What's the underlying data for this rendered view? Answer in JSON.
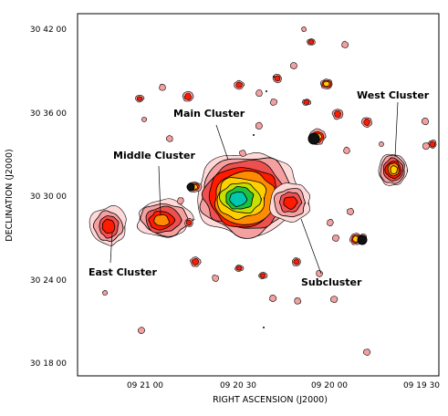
{
  "chart_data": {
    "type": "contour",
    "xlabel": "RIGHT ASCENSION  (J2000)",
    "ylabel": "DECLINATION  (J2000)",
    "x_ticks": [
      "09 21 00",
      "09 20 30",
      "09 20 00",
      "09 19 30"
    ],
    "y_ticks": [
      "30 42 00",
      "30 36 00",
      "30 30 00",
      "30 24 00",
      "30 18 00"
    ],
    "x_axis": "right ascension, increasing to the left",
    "annotations": [
      {
        "name": "main-cluster",
        "text": "Main Cluster"
      },
      {
        "name": "middle-cluster",
        "text": "Middle Cluster"
      },
      {
        "name": "west-cluster",
        "text": "West Cluster"
      },
      {
        "name": "east-cluster",
        "text": "East Cluster"
      },
      {
        "name": "subcluster",
        "text": "Subcluster"
      }
    ],
    "colormap": [
      "#ffd8d8",
      "#f4a0a0",
      "#ee5050",
      "#ff1a00",
      "#ff8c00",
      "#ffd000",
      "#c8e000",
      "#20c040",
      "#00c8b0"
    ],
    "grid": false,
    "legend": "none"
  }
}
